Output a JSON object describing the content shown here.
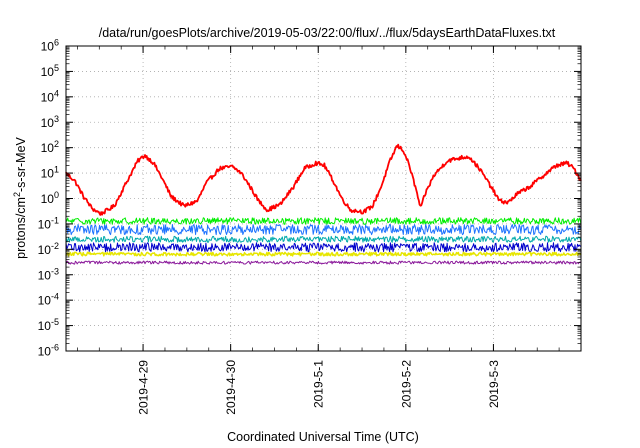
{
  "chart_data": {
    "type": "line",
    "title": "/data/run/goesPlots/archive/2019-05-03/22:00/flux/../flux/5daysEarthDataFluxes.txt",
    "xlabel": "Coordinated Universal Time (UTC)",
    "ylabel": {
      "prefix": "protons/cm",
      "sup": "2",
      "suffix": "-s-sr-MeV"
    },
    "yscale": "log",
    "ylim": [
      1e-06,
      1000000.0
    ],
    "xlim_days": [
      0,
      5.88
    ],
    "x_ticks": [
      {
        "label": "2019-4-29",
        "day": 0.88
      },
      {
        "label": "2019-4-30",
        "day": 1.88
      },
      {
        "label": "2019-5-1",
        "day": 2.88
      },
      {
        "label": "2019-5-2",
        "day": 3.88
      },
      {
        "label": "2019-5-3",
        "day": 4.88
      }
    ],
    "y_ticks": [
      {
        "exp": 6,
        "label": "10",
        "sup": "6"
      },
      {
        "exp": 5,
        "label": "10",
        "sup": "5"
      },
      {
        "exp": 4,
        "label": "10",
        "sup": "4"
      },
      {
        "exp": 3,
        "label": "10",
        "sup": "3"
      },
      {
        "exp": 2,
        "label": "10",
        "sup": "2"
      },
      {
        "exp": 1,
        "label": "10",
        "sup": "1"
      },
      {
        "exp": 0,
        "label": "10",
        "sup": "0"
      },
      {
        "exp": -1,
        "label": "10",
        "sup": "-1"
      },
      {
        "exp": -2,
        "label": "10",
        "sup": "-2"
      },
      {
        "exp": -3,
        "label": "10",
        "sup": "-3"
      },
      {
        "exp": -4,
        "label": "10",
        "sup": "-4"
      },
      {
        "exp": -5,
        "label": "10",
        "sup": "-5"
      },
      {
        "exp": -6,
        "label": "10",
        "sup": "-6"
      }
    ],
    "series": [
      {
        "color": "#ff0000",
        "noise": 0.08,
        "width": 1.8,
        "points": [
          [
            0.0,
            10
          ],
          [
            0.1,
            5
          ],
          [
            0.2,
            1.2
          ],
          [
            0.3,
            0.4
          ],
          [
            0.4,
            0.25
          ],
          [
            0.55,
            0.5
          ],
          [
            0.7,
            5
          ],
          [
            0.82,
            30
          ],
          [
            0.9,
            50
          ],
          [
            1.0,
            25
          ],
          [
            1.1,
            6
          ],
          [
            1.2,
            1.2
          ],
          [
            1.35,
            0.5
          ],
          [
            1.5,
            0.8
          ],
          [
            1.6,
            4
          ],
          [
            1.75,
            15
          ],
          [
            1.9,
            18
          ],
          [
            2.0,
            10
          ],
          [
            2.1,
            3
          ],
          [
            2.2,
            0.8
          ],
          [
            2.3,
            0.35
          ],
          [
            2.45,
            0.6
          ],
          [
            2.6,
            3
          ],
          [
            2.72,
            15
          ],
          [
            2.85,
            25
          ],
          [
            2.95,
            20
          ],
          [
            3.05,
            5
          ],
          [
            3.15,
            1
          ],
          [
            3.25,
            0.35
          ],
          [
            3.4,
            0.3
          ],
          [
            3.5,
            0.5
          ],
          [
            3.6,
            3
          ],
          [
            3.7,
            30
          ],
          [
            3.78,
            120
          ],
          [
            3.85,
            80
          ],
          [
            3.92,
            20
          ],
          [
            4.0,
            2
          ],
          [
            4.05,
            0.4
          ],
          [
            4.1,
            1.5
          ],
          [
            4.2,
            8
          ],
          [
            4.35,
            30
          ],
          [
            4.5,
            40
          ],
          [
            4.6,
            45
          ],
          [
            4.72,
            15
          ],
          [
            4.85,
            3
          ],
          [
            4.95,
            0.8
          ],
          [
            5.05,
            0.7
          ],
          [
            5.15,
            1.5
          ],
          [
            5.3,
            3
          ],
          [
            5.45,
            8
          ],
          [
            5.6,
            20
          ],
          [
            5.72,
            25
          ],
          [
            5.8,
            15
          ],
          [
            5.88,
            5
          ]
        ]
      },
      {
        "color": "#00ee00",
        "base": 0.13,
        "noise": 0.13,
        "width": 1
      },
      {
        "color": "#1e73ff",
        "base": 0.06,
        "noise": 0.2,
        "width": 1
      },
      {
        "color": "#00aaaa",
        "base": 0.025,
        "noise": 0.12,
        "width": 1
      },
      {
        "color": "#0000cc",
        "base": 0.012,
        "noise": 0.18,
        "width": 1
      },
      {
        "color": "#e6e600",
        "base": 0.0065,
        "noise": 0.07,
        "width": 1.5
      },
      {
        "color": "#8b1a9b",
        "base": 0.003,
        "noise": 0.06,
        "width": 1
      }
    ]
  }
}
